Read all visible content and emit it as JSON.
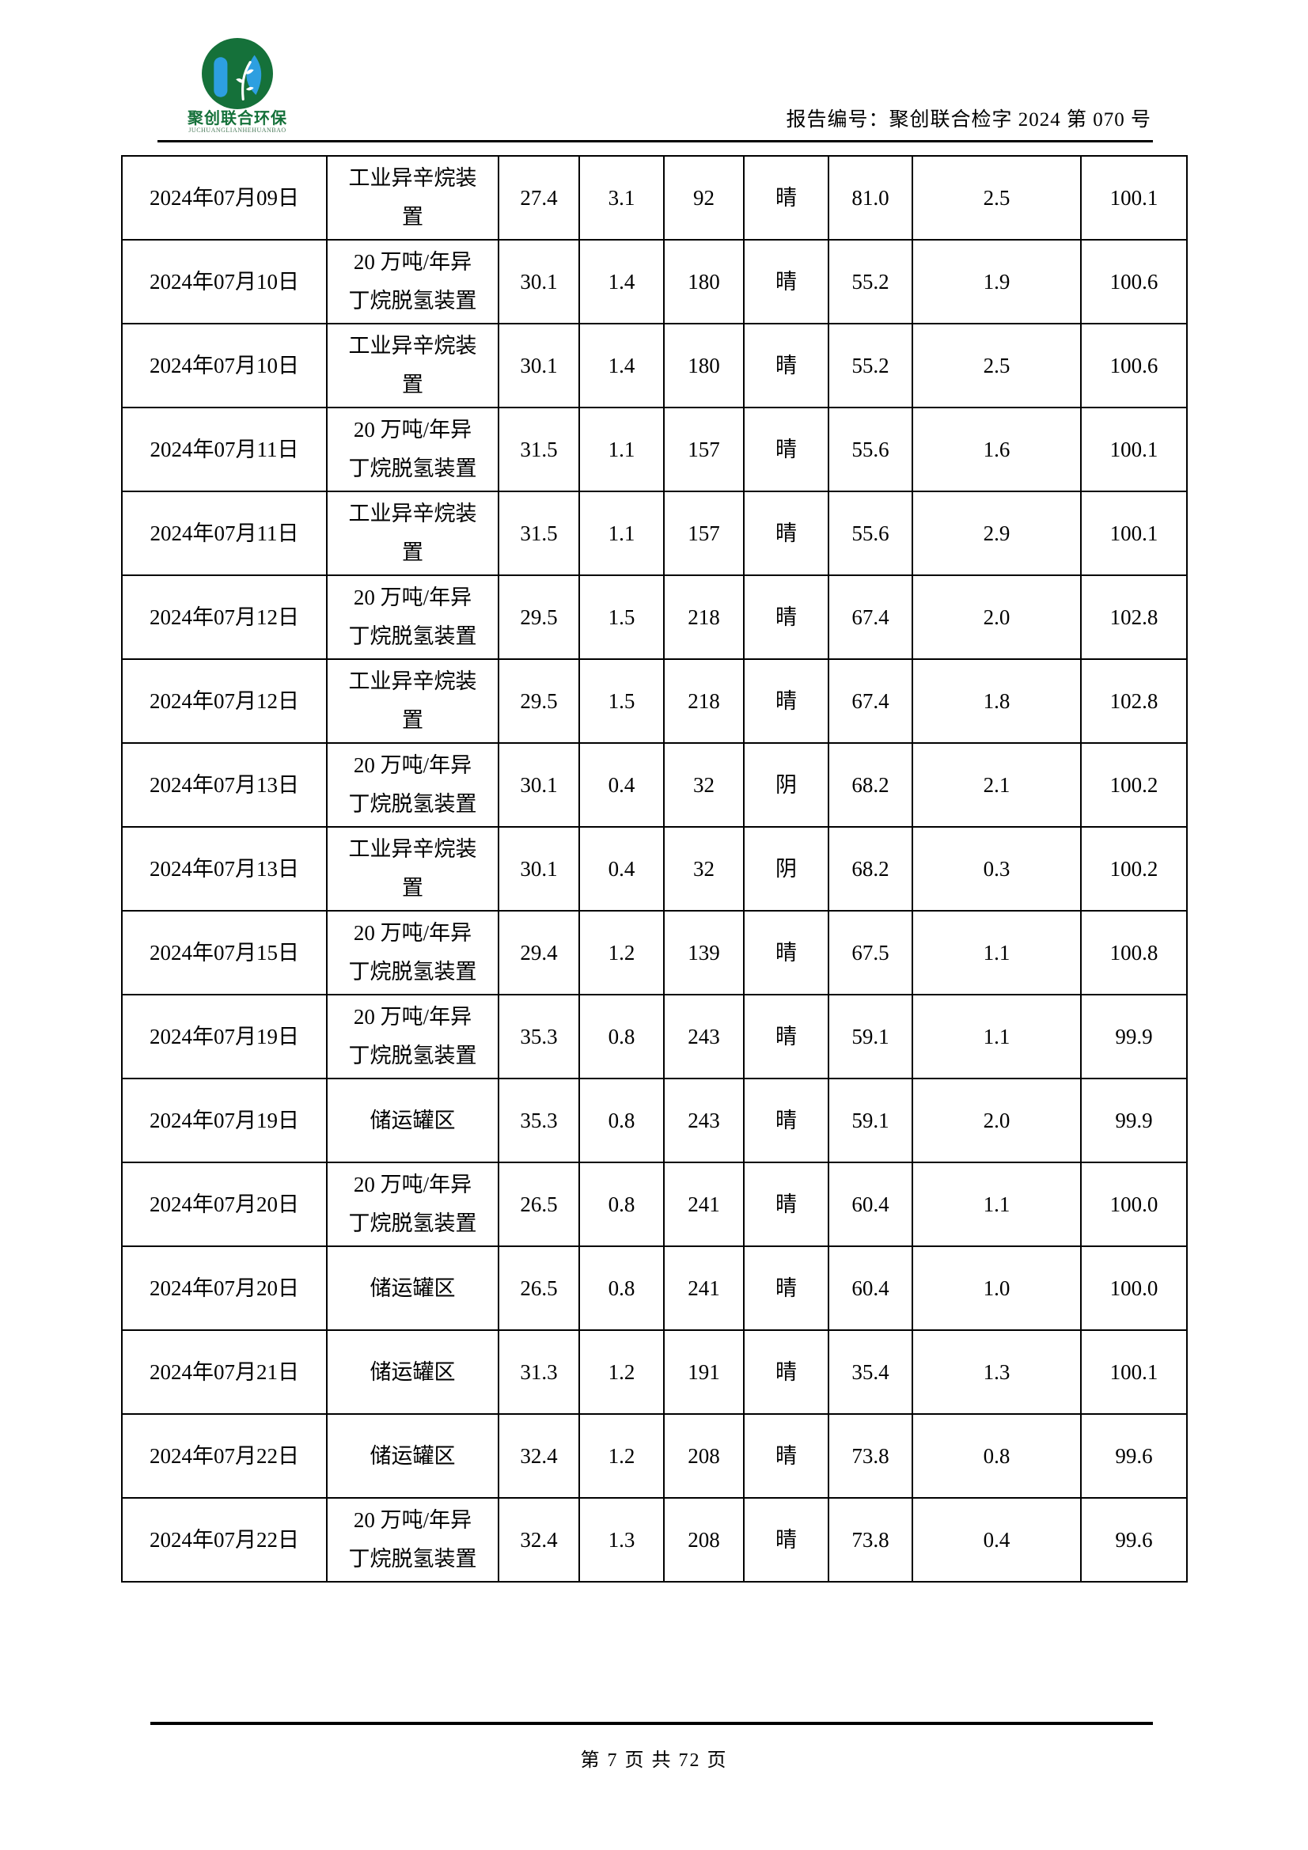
{
  "page": {
    "header": {
      "report_number": "报告编号：聚创联合检字 2024 第 070 号",
      "logo": {
        "company_cn": "聚创联合环保",
        "company_en": "JUCHUANGLIANHEHUANBAO"
      }
    },
    "footer": {
      "page_indicator": "第 7 页 共 72 页"
    }
  },
  "colors": {
    "logo_green": "#15713a",
    "logo_blue": "#2d9fe0",
    "rule_black": "#000000"
  },
  "table": {
    "rows": [
      [
        "2024年07月09日",
        "工业异辛烷装\n置",
        "27.4",
        "3.1",
        "92",
        "晴",
        "81.0",
        "2.5",
        "100.1"
      ],
      [
        "2024年07月10日",
        "20 万吨/年异\n丁烷脱氢装置",
        "30.1",
        "1.4",
        "180",
        "晴",
        "55.2",
        "1.9",
        "100.6"
      ],
      [
        "2024年07月10日",
        "工业异辛烷装\n置",
        "30.1",
        "1.4",
        "180",
        "晴",
        "55.2",
        "2.5",
        "100.6"
      ],
      [
        "2024年07月11日",
        "20 万吨/年异\n丁烷脱氢装置",
        "31.5",
        "1.1",
        "157",
        "晴",
        "55.6",
        "1.6",
        "100.1"
      ],
      [
        "2024年07月11日",
        "工业异辛烷装\n置",
        "31.5",
        "1.1",
        "157",
        "晴",
        "55.6",
        "2.9",
        "100.1"
      ],
      [
        "2024年07月12日",
        "20 万吨/年异\n丁烷脱氢装置",
        "29.5",
        "1.5",
        "218",
        "晴",
        "67.4",
        "2.0",
        "102.8"
      ],
      [
        "2024年07月12日",
        "工业异辛烷装\n置",
        "29.5",
        "1.5",
        "218",
        "晴",
        "67.4",
        "1.8",
        "102.8"
      ],
      [
        "2024年07月13日",
        "20 万吨/年异\n丁烷脱氢装置",
        "30.1",
        "0.4",
        "32",
        "阴",
        "68.2",
        "2.1",
        "100.2"
      ],
      [
        "2024年07月13日",
        "工业异辛烷装\n置",
        "30.1",
        "0.4",
        "32",
        "阴",
        "68.2",
        "0.3",
        "100.2"
      ],
      [
        "2024年07月15日",
        "20 万吨/年异\n丁烷脱氢装置",
        "29.4",
        "1.2",
        "139",
        "晴",
        "67.5",
        "1.1",
        "100.8"
      ],
      [
        "2024年07月19日",
        "20 万吨/年异\n丁烷脱氢装置",
        "35.3",
        "0.8",
        "243",
        "晴",
        "59.1",
        "1.1",
        "99.9"
      ],
      [
        "2024年07月19日",
        "储运罐区",
        "35.3",
        "0.8",
        "243",
        "晴",
        "59.1",
        "2.0",
        "99.9"
      ],
      [
        "2024年07月20日",
        "20 万吨/年异\n丁烷脱氢装置",
        "26.5",
        "0.8",
        "241",
        "晴",
        "60.4",
        "1.1",
        "100.0"
      ],
      [
        "2024年07月20日",
        "储运罐区",
        "26.5",
        "0.8",
        "241",
        "晴",
        "60.4",
        "1.0",
        "100.0"
      ],
      [
        "2024年07月21日",
        "储运罐区",
        "31.3",
        "1.2",
        "191",
        "晴",
        "35.4",
        "1.3",
        "100.1"
      ],
      [
        "2024年07月22日",
        "储运罐区",
        "32.4",
        "1.2",
        "208",
        "晴",
        "73.8",
        "0.8",
        "99.6"
      ],
      [
        "2024年07月22日",
        "20 万吨/年异\n丁烷脱氢装置",
        "32.4",
        "1.3",
        "208",
        "晴",
        "73.8",
        "0.4",
        "99.6"
      ]
    ]
  }
}
